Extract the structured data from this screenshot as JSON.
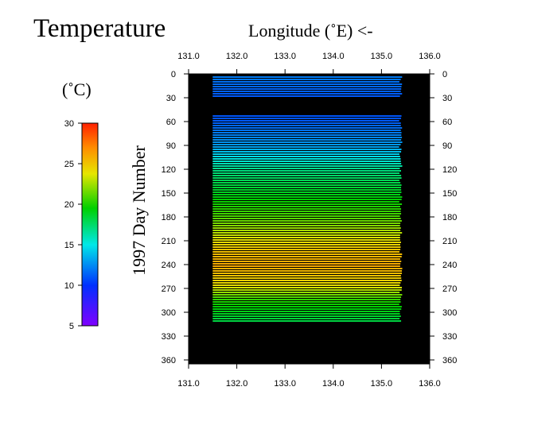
{
  "chart_data": {
    "type": "heatmap",
    "title": "Temperature",
    "xlabel": "Longitude (˚E) <-",
    "ylabel": "1997  Day  Number",
    "x_ticks": [
      "131.0",
      "132.0",
      "133.0",
      "134.0",
      "135.0",
      "136.0"
    ],
    "y_ticks": [
      "0",
      "30",
      "60",
      "90",
      "120",
      "150",
      "180",
      "210",
      "240",
      "270",
      "300",
      "330",
      "360"
    ],
    "xlim": [
      131.0,
      136.0
    ],
    "ylim": [
      0,
      365
    ],
    "y_inverted": true,
    "colorbar": {
      "label": "(˚C)",
      "ticks": [
        "30",
        "25",
        "20",
        "15",
        "10",
        "5"
      ],
      "range": [
        5,
        30
      ]
    },
    "data_extent": {
      "longitude": [
        131.5,
        135.4
      ],
      "day_segments": [
        [
          3,
          30
        ],
        [
          52,
          313
        ]
      ]
    },
    "temperature_profile": [
      {
        "day": 3,
        "value": 12
      },
      {
        "day": 30,
        "value": 11
      },
      {
        "day": 55,
        "value": 11
      },
      {
        "day": 90,
        "value": 13
      },
      {
        "day": 120,
        "value": 17
      },
      {
        "day": 150,
        "value": 19
      },
      {
        "day": 180,
        "value": 21
      },
      {
        "day": 200,
        "value": 23
      },
      {
        "day": 220,
        "value": 25
      },
      {
        "day": 240,
        "value": 26
      },
      {
        "day": 265,
        "value": 24
      },
      {
        "day": 285,
        "value": 20
      },
      {
        "day": 313,
        "value": 18
      }
    ]
  }
}
